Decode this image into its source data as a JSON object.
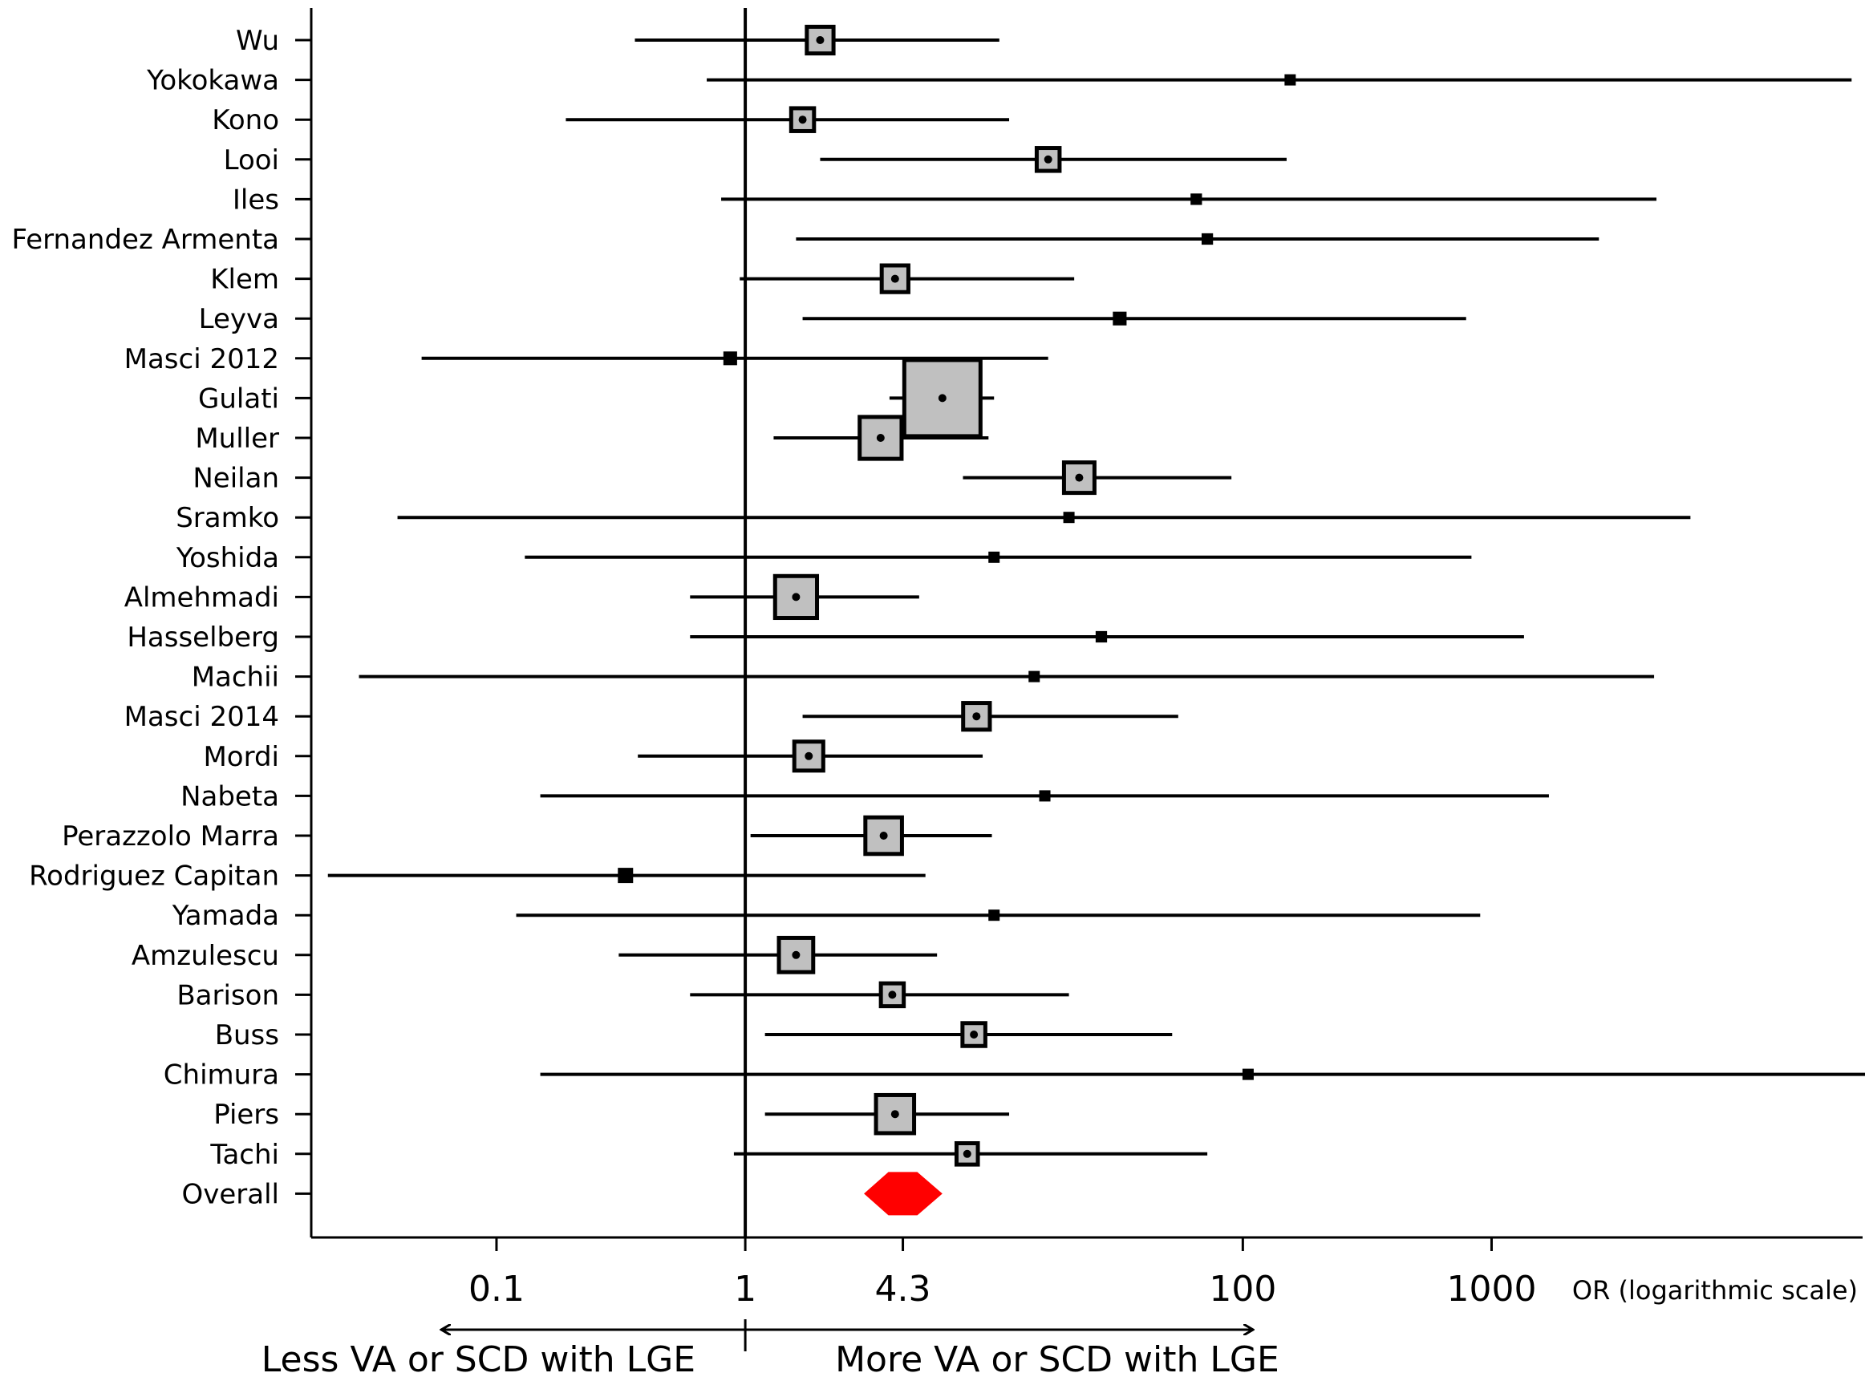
{
  "chart_data": {
    "type": "forest",
    "title": "",
    "xlabel": "OR (logarithmic scale)",
    "x_scale": "log10",
    "xlim": [
      0.018,
      31000
    ],
    "reference_line": 1,
    "ticks": [
      {
        "value": 0.1,
        "label": "0.1"
      },
      {
        "value": 1,
        "label": "1"
      },
      {
        "value": 4.3,
        "label": "4.3"
      },
      {
        "value": 100,
        "label": "100"
      },
      {
        "value": 1000,
        "label": "1000"
      }
    ],
    "direction_labels": {
      "left": "Less VA or SCD with LGE",
      "right": "More VA or SCD with LGE",
      "arrow_from": 0.06,
      "arrow_to": 110
    },
    "studies": [
      {
        "name": "Wu",
        "or": 2.0,
        "lower": 0.36,
        "upper": 10.5,
        "weight": 0.35
      },
      {
        "name": "Yokokawa",
        "or": 155,
        "lower": 0.7,
        "upper": 28000,
        "weight": 0.1
      },
      {
        "name": "Kono",
        "or": 1.7,
        "lower": 0.19,
        "upper": 11.5,
        "weight": 0.3
      },
      {
        "name": "Looi",
        "or": 16.5,
        "lower": 2.0,
        "upper": 150,
        "weight": 0.3
      },
      {
        "name": "Iles",
        "or": 65,
        "lower": 0.8,
        "upper": 4600,
        "weight": 0.15
      },
      {
        "name": "Fernandez Armenta",
        "or": 72,
        "lower": 1.6,
        "upper": 2700,
        "weight": 0.15
      },
      {
        "name": "Klem",
        "or": 4.0,
        "lower": 0.95,
        "upper": 21,
        "weight": 0.35
      },
      {
        "name": "Leyva",
        "or": 32,
        "lower": 1.7,
        "upper": 790,
        "weight": 0.18
      },
      {
        "name": "Masci 2012",
        "or": 0.87,
        "lower": 0.05,
        "upper": 16.5,
        "weight": 0.18
      },
      {
        "name": "Gulati",
        "or": 6.2,
        "lower": 3.8,
        "upper": 10.0,
        "weight": 1.0
      },
      {
        "name": "Muller",
        "or": 3.5,
        "lower": 1.3,
        "upper": 9.5,
        "weight": 0.55
      },
      {
        "name": "Neilan",
        "or": 22,
        "lower": 7.5,
        "upper": 90,
        "weight": 0.4
      },
      {
        "name": "Sramko",
        "or": 20,
        "lower": 0.04,
        "upper": 6300,
        "weight": 0.1
      },
      {
        "name": "Yoshida",
        "or": 10,
        "lower": 0.13,
        "upper": 830,
        "weight": 0.12
      },
      {
        "name": "Almehmadi",
        "or": 1.6,
        "lower": 0.6,
        "upper": 5.0,
        "weight": 0.55
      },
      {
        "name": "Hasselberg",
        "or": 27,
        "lower": 0.6,
        "upper": 1350,
        "weight": 0.15
      },
      {
        "name": "Machii",
        "or": 14.5,
        "lower": 0.028,
        "upper": 4500,
        "weight": 0.1
      },
      {
        "name": "Masci 2014",
        "or": 8.5,
        "lower": 1.7,
        "upper": 55,
        "weight": 0.35
      },
      {
        "name": "Mordi",
        "or": 1.8,
        "lower": 0.37,
        "upper": 9.0,
        "weight": 0.38
      },
      {
        "name": "Nabeta",
        "or": 16,
        "lower": 0.15,
        "upper": 1700,
        "weight": 0.12
      },
      {
        "name": "Perazzolo Marra",
        "or": 3.6,
        "lower": 1.05,
        "upper": 9.8,
        "weight": 0.48
      },
      {
        "name": "Rodriguez Capitan",
        "or": 0.33,
        "lower": 0.021,
        "upper": 5.3,
        "weight": 0.2
      },
      {
        "name": "Yamada",
        "or": 10,
        "lower": 0.12,
        "upper": 900,
        "weight": 0.13
      },
      {
        "name": "Amzulescu",
        "or": 1.6,
        "lower": 0.31,
        "upper": 5.9,
        "weight": 0.45
      },
      {
        "name": "Barison",
        "or": 3.9,
        "lower": 0.6,
        "upper": 20,
        "weight": 0.3
      },
      {
        "name": "Buss",
        "or": 8.3,
        "lower": 1.2,
        "upper": 52,
        "weight": 0.3
      },
      {
        "name": "Chimura",
        "or": 105,
        "lower": 0.15,
        "upper": 32000,
        "weight": 0.08
      },
      {
        "name": "Piers",
        "or": 4.0,
        "lower": 1.2,
        "upper": 11.5,
        "weight": 0.5
      },
      {
        "name": "Tachi",
        "or": 7.8,
        "lower": 0.9,
        "upper": 72,
        "weight": 0.28
      }
    ],
    "overall": {
      "name": "Overall",
      "or": 4.3,
      "lower": 3.0,
      "upper": 6.2,
      "color": "#ff0000"
    },
    "colors": {
      "box_fill": "#c0c0c0",
      "line": "#000000",
      "overall": "#ff0000"
    }
  }
}
